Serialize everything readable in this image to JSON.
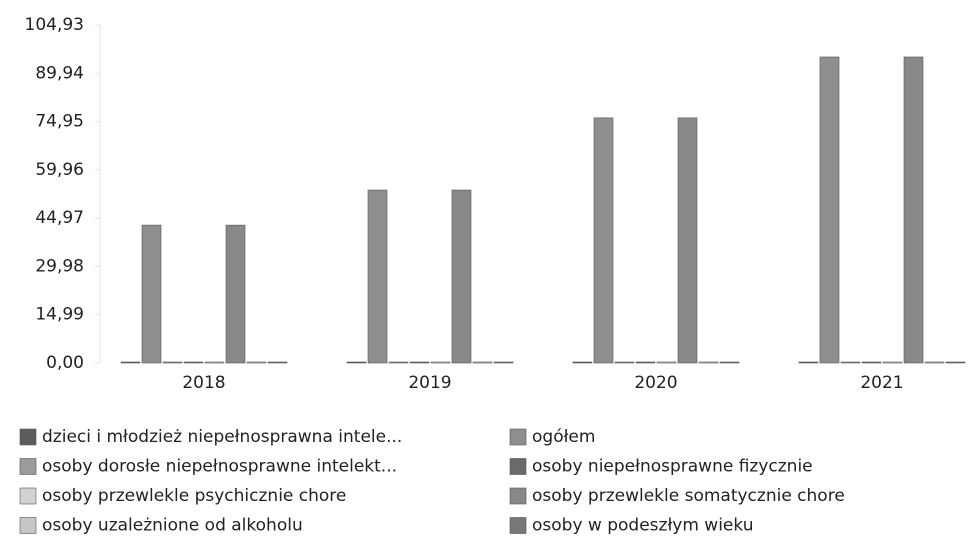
{
  "chart_data": {
    "type": "bar",
    "categories": [
      "2018",
      "2019",
      "2020",
      "2021"
    ],
    "series": [
      {
        "name": "dzieci i młodzież niepełnosprawna intele...",
        "color": "#5c5c5c",
        "values": [
          0,
          0,
          0,
          0
        ]
      },
      {
        "name": "ogółem",
        "color": "#8e8e8e",
        "values": [
          42.8,
          53.7,
          76.1,
          95.0
        ]
      },
      {
        "name": "osoby dorosłe niepełnosprawne intelekt...",
        "color": "#9c9c9c",
        "values": [
          0,
          0,
          0,
          0
        ]
      },
      {
        "name": "osoby niepełnosprawne fizycznie",
        "color": "#6a6a6a",
        "values": [
          0,
          0,
          0,
          0
        ]
      },
      {
        "name": "osoby przewlekle psychicznie chore",
        "color": "#d2d2d2",
        "values": [
          0,
          0,
          0,
          0
        ]
      },
      {
        "name": "osoby przewlekle somatycznie chore",
        "color": "#888888",
        "values": [
          42.8,
          53.7,
          76.1,
          95.0
        ]
      },
      {
        "name": "osoby uzależnione od alkoholu",
        "color": "#c6c6c6",
        "values": [
          0,
          0,
          0,
          0
        ]
      },
      {
        "name": "osoby w podeszłym wieku",
        "color": "#777777",
        "values": [
          0,
          0,
          0,
          0
        ]
      }
    ],
    "ylim": [
      0,
      104.93
    ],
    "yticks": [
      {
        "value": 0,
        "label": "0,00"
      },
      {
        "value": 14.99,
        "label": "14,99"
      },
      {
        "value": 29.98,
        "label": "29,98"
      },
      {
        "value": 44.97,
        "label": "44,97"
      },
      {
        "value": 59.96,
        "label": "59,96"
      },
      {
        "value": 74.95,
        "label": "74,95"
      },
      {
        "value": 89.94,
        "label": "89,94"
      },
      {
        "value": 104.93,
        "label": "104,93"
      }
    ],
    "legend": "bottom"
  }
}
